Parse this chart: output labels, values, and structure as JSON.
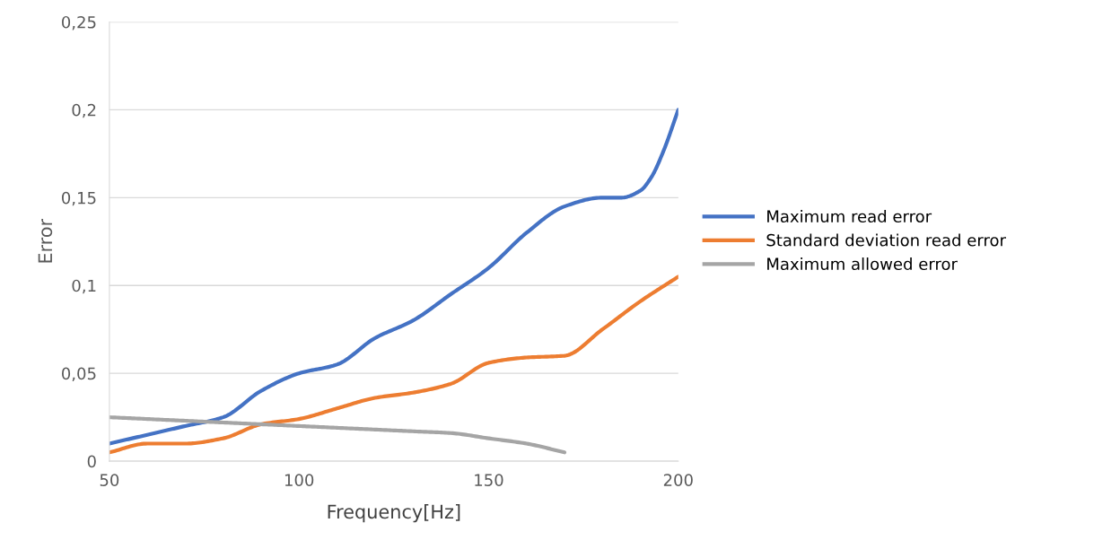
{
  "chart_data": {
    "type": "line",
    "xlabel": "Frequency[Hz]",
    "ylabel": "Error",
    "x": [
      50,
      60,
      70,
      80,
      90,
      100,
      110,
      120,
      130,
      140,
      150,
      160,
      170,
      180,
      190,
      200
    ],
    "series": [
      {
        "name": "Maximum read error",
        "color": "#4472c4",
        "x": [
          50,
          60,
          70,
          80,
          90,
          100,
          110,
          120,
          130,
          140,
          150,
          160,
          170,
          180,
          185,
          190,
          193,
          196,
          200
        ],
        "values": [
          0.01,
          0.015,
          0.02,
          0.025,
          0.04,
          0.05,
          0.055,
          0.07,
          0.08,
          0.095,
          0.11,
          0.13,
          0.145,
          0.15,
          0.15,
          0.154,
          0.162,
          0.176,
          0.2
        ]
      },
      {
        "name": "Standard deviation read error",
        "color": "#ed7d31",
        "values": [
          0.005,
          0.01,
          0.01,
          0.013,
          0.021,
          0.024,
          0.03,
          0.036,
          0.039,
          0.044,
          0.056,
          0.059,
          0.06,
          0.075,
          0.091,
          0.105
        ]
      },
      {
        "name": "Maximum allowed error",
        "color": "#a5a5a5",
        "values": [
          0.025,
          0.024,
          0.023,
          0.022,
          0.021,
          0.02,
          0.019,
          0.018,
          0.017,
          0.016,
          0.013,
          0.01,
          0.005,
          null,
          null,
          null
        ]
      }
    ],
    "xlim": [
      50,
      200
    ],
    "xticks": [
      50,
      100,
      150,
      200
    ],
    "ylim": [
      0,
      0.25
    ],
    "yticks": [
      0,
      {
        "value": 0.05,
        "label": "0,05"
      },
      {
        "value": 0.1,
        "label": "0,1"
      },
      {
        "value": 0.15,
        "label": "0,15"
      },
      {
        "value": 0.2,
        "label": "0,2"
      },
      {
        "value": 0.25,
        "label": "0,25"
      }
    ],
    "grid": "y",
    "legend": "right",
    "marker": "none",
    "line_style": "solid"
  }
}
